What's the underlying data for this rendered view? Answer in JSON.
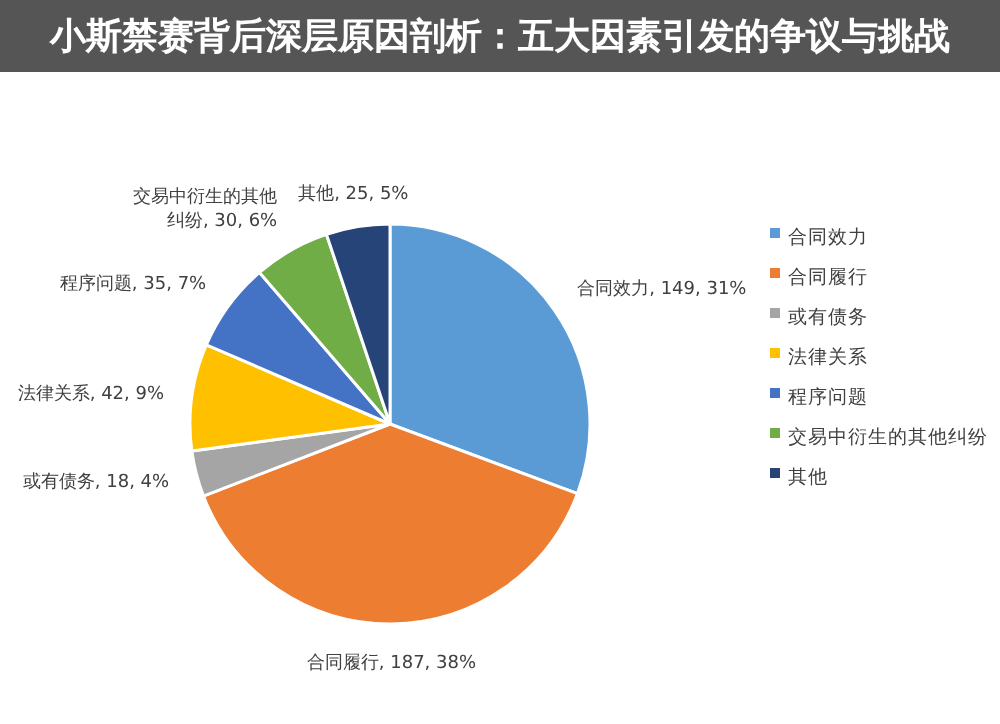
{
  "chart_data": {
    "type": "pie",
    "title": "小斯禁赛背后深层原因剖析：五大因素引发的争议与挑战",
    "categories": [
      "合同效力",
      "合同履行",
      "或有债务",
      "法律关系",
      "程序问题",
      "交易中衍生的其他纠纷",
      "其他"
    ],
    "values": [
      149,
      187,
      18,
      42,
      35,
      30,
      25
    ],
    "value_labels": [
      "合同效力, 149, 31%",
      "合同履行, 187, 38%",
      "或有债务, 18, 4%",
      "法律关系, 42, 9%",
      "程序问题, 35, 7%",
      "交易中衍生的其他纠纷, 30, 6%",
      "其他, 25, 5%"
    ],
    "colors": [
      "#5b9bd5",
      "#ed7d31",
      "#a5a5a5",
      "#ffc000",
      "#4472c4",
      "#70ad47",
      "#264478"
    ],
    "legend": "right"
  }
}
